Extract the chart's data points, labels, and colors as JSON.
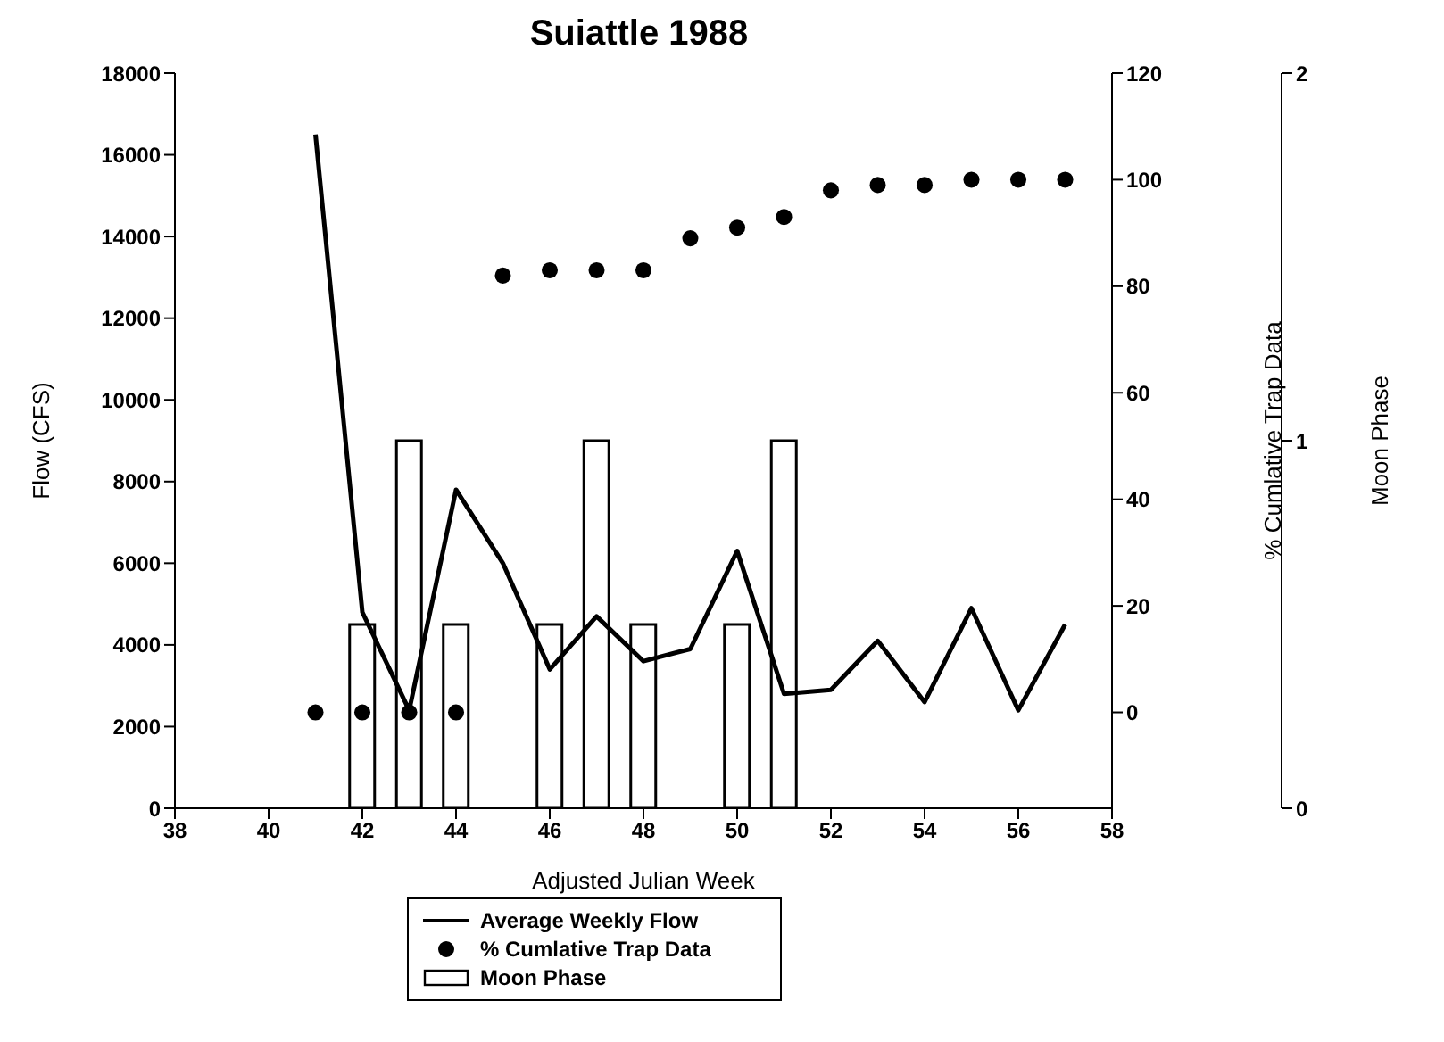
{
  "chart_data": {
    "type": "line",
    "title": "Suiattle 1988",
    "xlabel": "Adjusted Julian Week",
    "ylabel": "Flow (CFS)",
    "y2label": "% Cumlative Trap Data",
    "y3label": "Moon Phase",
    "xlim": [
      38,
      58
    ],
    "xticks": [
      38,
      40,
      42,
      44,
      46,
      48,
      50,
      52,
      54,
      56,
      58
    ],
    "ylim": [
      0,
      18000
    ],
    "yticks": [
      0,
      2000,
      4000,
      6000,
      8000,
      10000,
      12000,
      14000,
      16000,
      18000
    ],
    "y2lim": [
      -18,
      120
    ],
    "y2ticks": [
      0,
      20,
      40,
      60,
      80,
      100,
      120
    ],
    "y3lim": [
      0,
      2
    ],
    "y3ticks": [
      0,
      1,
      2
    ],
    "grid": false,
    "legend": "bottom",
    "series": [
      {
        "name": "Average Weekly Flow",
        "color": "#000000",
        "marker": "none",
        "x": [
          41,
          42,
          43,
          44,
          45,
          46,
          47,
          48,
          49,
          50,
          51,
          52,
          53,
          54,
          55,
          56,
          57
        ],
        "values": [
          16500,
          4800,
          2400,
          7800,
          6000,
          3400,
          4700,
          3600,
          3900,
          6300,
          2800,
          2900,
          4100,
          2600,
          4900,
          2400,
          4500
        ]
      },
      {
        "name": "% Cumlative Trap Data",
        "type": "scatter",
        "axis": "y2",
        "color": "#000000",
        "marker": "circle",
        "x": [
          41,
          42,
          43,
          44,
          45,
          46,
          47,
          48,
          49,
          50,
          51,
          52,
          53,
          54,
          55,
          56,
          57
        ],
        "values": [
          0,
          0,
          0,
          0,
          82,
          83,
          83,
          83,
          89,
          91,
          93,
          98,
          99,
          99,
          100,
          100,
          100
        ]
      },
      {
        "name": "Moon Phase",
        "type": "bar",
        "axis": "y3",
        "color": "#ffffff",
        "x": [
          42,
          43,
          44,
          46,
          47,
          48,
          50,
          51
        ],
        "values": [
          0.5,
          1,
          0.5,
          0.5,
          1,
          0.5,
          0.5,
          1
        ]
      }
    ]
  }
}
